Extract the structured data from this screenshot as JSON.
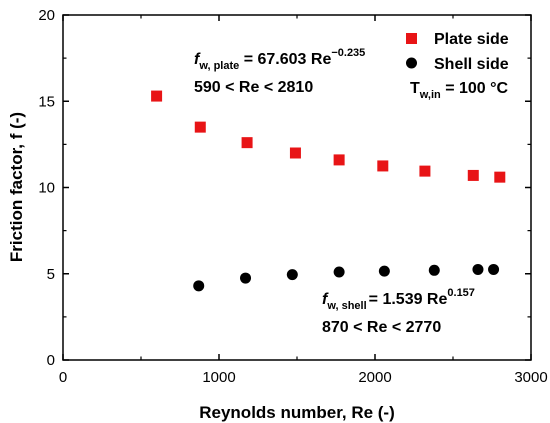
{
  "chart_data": {
    "type": "scatter",
    "xlabel": "Reynolds number, Re (-)",
    "ylabel": "Friction factor, f (-)",
    "xlim": [
      0,
      3000
    ],
    "ylim": [
      0,
      20
    ],
    "xticks": [
      0,
      1000,
      2000,
      3000
    ],
    "yticks": [
      0,
      5,
      10,
      15,
      20
    ],
    "xtick_labels": [
      "0",
      "1000",
      "2000",
      "3000"
    ],
    "ytick_labels": [
      "0",
      "5",
      "10",
      "15",
      "20"
    ],
    "grid": false,
    "legend_position": "top-right",
    "series": [
      {
        "name": "Plate side",
        "marker": "square",
        "color": "#e81416",
        "x": [
          600,
          880,
          1180,
          1490,
          1770,
          2050,
          2320,
          2630,
          2800
        ],
        "y": [
          15.3,
          13.5,
          12.6,
          12.0,
          11.6,
          11.25,
          10.95,
          10.7,
          10.6
        ]
      },
      {
        "name": "Shell side",
        "marker": "circle",
        "color": "#000000",
        "x": [
          870,
          1170,
          1470,
          1770,
          2060,
          2380,
          2660,
          2760
        ],
        "y": [
          4.3,
          4.75,
          4.95,
          5.1,
          5.15,
          5.2,
          5.25,
          5.25
        ]
      }
    ],
    "annotations": {
      "plate": {
        "f": "f",
        "sub": "w, plate",
        "eq": " = 67.603 Re",
        "exp": "−0.235",
        "range": "590 < Re < 2810"
      },
      "temp": {
        "T": "T",
        "sub": "w,in",
        "eq": " = 100 °C"
      },
      "shell": {
        "f": "f",
        "sub": "w, shell",
        "eq": "= 1.539 Re",
        "exp": "0.157",
        "range": "870 < Re < 2770"
      }
    }
  }
}
